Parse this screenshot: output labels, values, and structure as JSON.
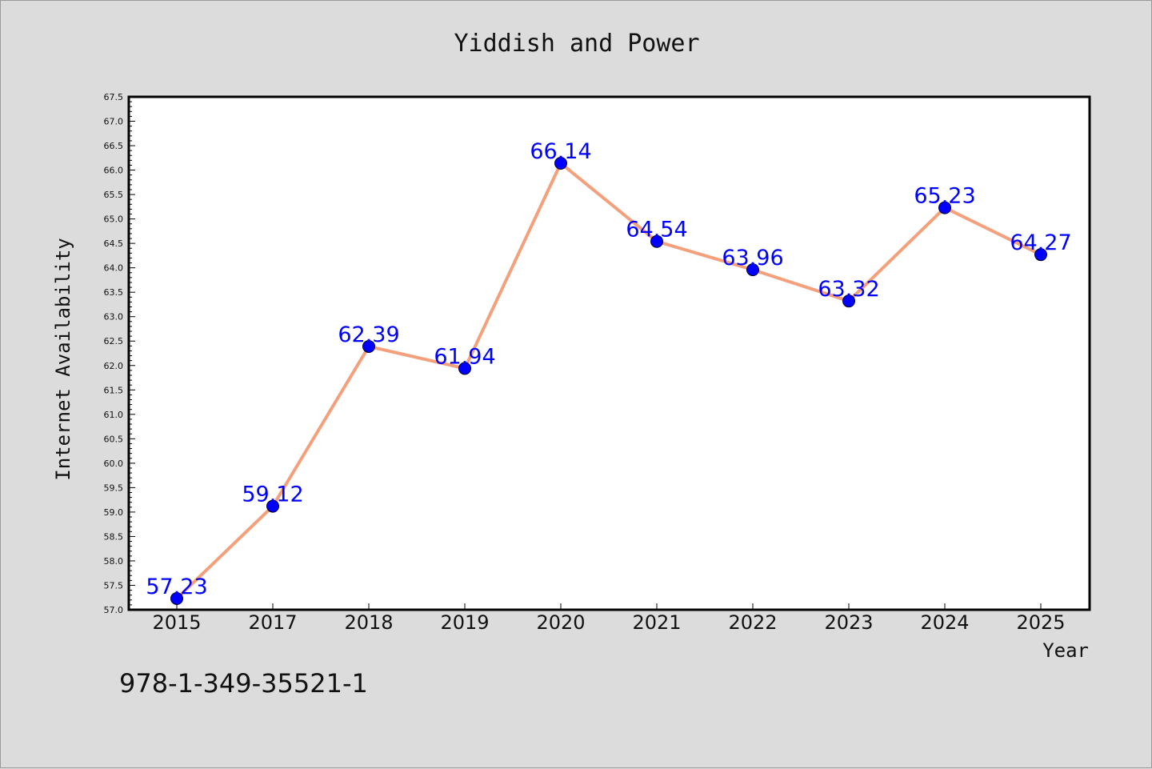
{
  "colors": {
    "background": "#dcdcdc",
    "plot_background": "#ffffff",
    "line": "#f4a07c",
    "marker": "#0000ff",
    "data_label": "#0000ff",
    "text": "#111111"
  },
  "footer": {
    "isbn": "978-1-349-35521-1"
  },
  "chart_data": {
    "type": "line",
    "title": "Yiddish and Power",
    "xlabel": "Year",
    "ylabel": "Internet Availability",
    "categories": [
      "2015",
      "2017",
      "2018",
      "2019",
      "2020",
      "2021",
      "2022",
      "2023",
      "2024",
      "2025"
    ],
    "series": [
      {
        "values": [
          57.23,
          59.12,
          62.39,
          61.94,
          66.14,
          64.54,
          63.96,
          63.32,
          65.23,
          64.27
        ],
        "labels": [
          "57.23",
          "59.12",
          "62.39",
          "61.94",
          "66.14",
          "64.54",
          "63.96",
          "63.32",
          "65.23",
          "64.27"
        ]
      }
    ],
    "ylim": [
      57.0,
      67.5
    ],
    "ytick_step": 0.5,
    "grid": false,
    "legend": "none"
  }
}
